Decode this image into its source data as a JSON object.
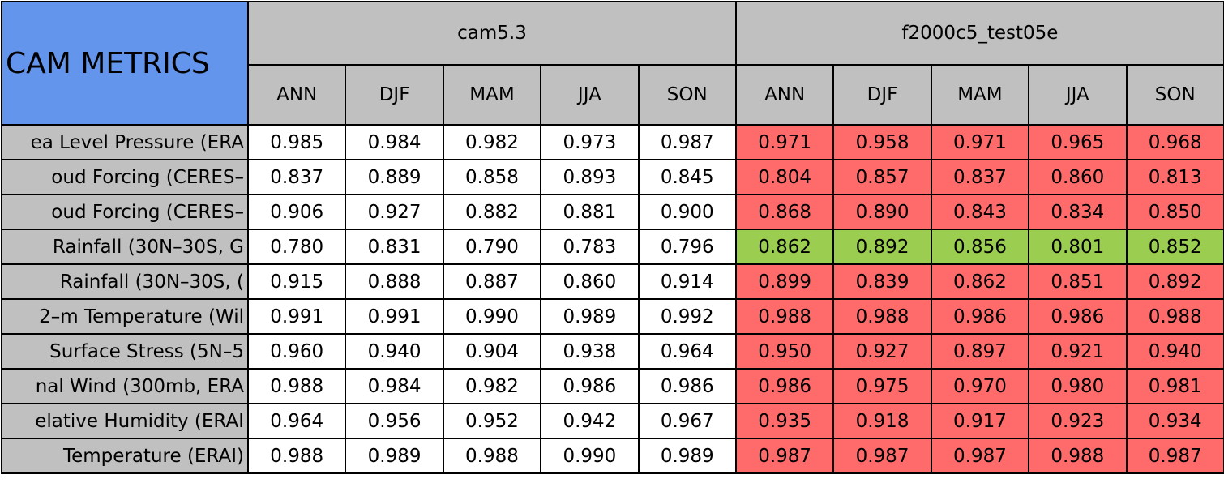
{
  "table": {
    "title": "CAM METRICS",
    "groups": [
      {
        "name": "cam5.3",
        "seasons": [
          "ANN",
          "DJF",
          "MAM",
          "JJA",
          "SON"
        ]
      },
      {
        "name": "f2000c5_test05e",
        "seasons": [
          "ANN",
          "DJF",
          "MAM",
          "JJA",
          "SON"
        ]
      }
    ],
    "rows": [
      {
        "label": "ea Level Pressure (ERA",
        "values": [
          "0.985",
          "0.984",
          "0.982",
          "0.973",
          "0.987",
          "0.971",
          "0.958",
          "0.971",
          "0.965",
          "0.968"
        ],
        "color": "#ff6b6b"
      },
      {
        "label": "oud Forcing (CERES–",
        "values": [
          "0.837",
          "0.889",
          "0.858",
          "0.893",
          "0.845",
          "0.804",
          "0.857",
          "0.837",
          "0.860",
          "0.813"
        ],
        "color": "#ff6b6b"
      },
      {
        "label": "oud Forcing (CERES–",
        "values": [
          "0.906",
          "0.927",
          "0.882",
          "0.881",
          "0.900",
          "0.868",
          "0.890",
          "0.843",
          "0.834",
          "0.850"
        ],
        "color": "#ff6b6b"
      },
      {
        "label": "Rainfall (30N–30S, G",
        "values": [
          "0.780",
          "0.831",
          "0.790",
          "0.783",
          "0.796",
          "0.862",
          "0.892",
          "0.856",
          "0.801",
          "0.852"
        ],
        "color": "#9acd50"
      },
      {
        "label": "Rainfall (30N–30S, (",
        "values": [
          "0.915",
          "0.888",
          "0.887",
          "0.860",
          "0.914",
          "0.899",
          "0.839",
          "0.862",
          "0.851",
          "0.892"
        ],
        "color": "#ff6b6b"
      },
      {
        "label": "2–m Temperature (Wil",
        "values": [
          "0.991",
          "0.991",
          "0.990",
          "0.989",
          "0.992",
          "0.988",
          "0.988",
          "0.986",
          "0.986",
          "0.988"
        ],
        "color": "#ff6b6b"
      },
      {
        "label": "Surface Stress (5N–5",
        "values": [
          "0.960",
          "0.940",
          "0.904",
          "0.938",
          "0.964",
          "0.950",
          "0.927",
          "0.897",
          "0.921",
          "0.940"
        ],
        "color": "#ff6b6b"
      },
      {
        "label": "nal Wind (300mb, ERA",
        "values": [
          "0.988",
          "0.984",
          "0.982",
          "0.986",
          "0.986",
          "0.986",
          "0.975",
          "0.970",
          "0.980",
          "0.981"
        ],
        "color": "#ff6b6b"
      },
      {
        "label": "elative Humidity (ERAI",
        "values": [
          "0.964",
          "0.956",
          "0.952",
          "0.942",
          "0.967",
          "0.935",
          "0.918",
          "0.917",
          "0.923",
          "0.934"
        ],
        "color": "#ff6b6b"
      },
      {
        "label": "Temperature (ERAI)",
        "values": [
          "0.988",
          "0.989",
          "0.988",
          "0.990",
          "0.989",
          "0.987",
          "0.987",
          "0.987",
          "0.988",
          "0.987"
        ],
        "color": "#ff6b6b"
      }
    ]
  }
}
